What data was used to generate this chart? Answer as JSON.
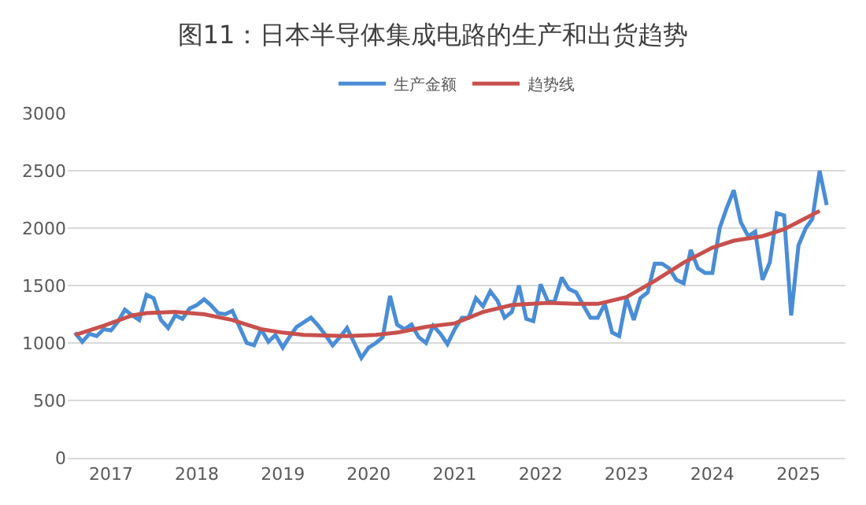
{
  "chart_data": {
    "type": "line",
    "title": "图11：日本半导体集成电路的生产和出货趋势",
    "x": [
      "2016-08",
      "2016-09",
      "2016-10",
      "2016-11",
      "2016-12",
      "2017-01",
      "2017-02",
      "2017-03",
      "2017-04",
      "2017-05",
      "2017-06",
      "2017-07",
      "2017-08",
      "2017-09",
      "2017-10",
      "2017-11",
      "2017-12",
      "2018-01",
      "2018-02",
      "2018-03",
      "2018-04",
      "2018-05",
      "2018-06",
      "2018-07",
      "2018-08",
      "2018-09",
      "2018-10",
      "2018-11",
      "2018-12",
      "2019-01",
      "2019-02",
      "2019-03",
      "2019-04",
      "2019-05",
      "2019-06",
      "2019-07",
      "2019-08",
      "2019-09",
      "2019-10",
      "2019-11",
      "2019-12",
      "2020-01",
      "2020-02",
      "2020-03",
      "2020-04",
      "2020-05",
      "2020-06",
      "2020-07",
      "2020-08",
      "2020-09",
      "2020-10",
      "2020-11",
      "2020-12",
      "2021-01",
      "2021-02",
      "2021-03",
      "2021-04",
      "2021-05",
      "2021-06",
      "2021-07",
      "2021-08",
      "2021-09",
      "2021-10",
      "2021-11",
      "2021-12",
      "2022-01",
      "2022-02",
      "2022-03",
      "2022-04",
      "2022-05",
      "2022-06",
      "2022-07",
      "2022-08",
      "2022-09",
      "2022-10",
      "2022-11",
      "2022-12",
      "2023-01",
      "2023-02",
      "2023-03",
      "2023-04",
      "2023-05",
      "2023-06",
      "2023-07",
      "2023-08",
      "2023-09",
      "2023-10",
      "2023-11",
      "2023-12",
      "2024-01",
      "2024-02",
      "2024-03",
      "2024-04",
      "2024-05",
      "2024-06",
      "2024-07",
      "2024-08",
      "2024-09",
      "2024-10",
      "2024-11",
      "2024-12",
      "2025-01",
      "2025-02",
      "2025-03",
      "2025-04",
      "2025-05"
    ],
    "series": [
      {
        "name": "生产金额",
        "color": "#4a8dd6",
        "values": [
          1090,
          1010,
          1080,
          1060,
          1120,
          1110,
          1190,
          1290,
          1240,
          1200,
          1420,
          1390,
          1200,
          1130,
          1240,
          1210,
          1300,
          1330,
          1380,
          1330,
          1260,
          1250,
          1280,
          1140,
          1000,
          980,
          1120,
          1010,
          1070,
          960,
          1060,
          1140,
          1180,
          1220,
          1150,
          1070,
          980,
          1050,
          1130,
          1000,
          870,
          960,
          1000,
          1050,
          1410,
          1160,
          1120,
          1160,
          1050,
          1000,
          1150,
          1080,
          990,
          1120,
          1220,
          1220,
          1390,
          1320,
          1450,
          1370,
          1220,
          1270,
          1500,
          1210,
          1190,
          1510,
          1360,
          1360,
          1570,
          1470,
          1440,
          1330,
          1220,
          1220,
          1340,
          1090,
          1060,
          1390,
          1200,
          1390,
          1440,
          1690,
          1690,
          1650,
          1550,
          1520,
          1810,
          1650,
          1610,
          1610,
          2000,
          2170,
          2330,
          2050,
          1930,
          1970,
          1550,
          1700,
          2130,
          2110,
          1240,
          1850,
          2000,
          2080,
          2500,
          2200
        ]
      },
      {
        "name": "趋势线",
        "color": "#c8504d",
        "x": [
          "2016-08",
          "2016-12",
          "2017-04",
          "2017-06",
          "2017-10",
          "2018-02",
          "2018-06",
          "2018-10",
          "2019-01",
          "2019-04",
          "2019-10",
          "2020-02",
          "2020-05",
          "2020-09",
          "2021-01",
          "2021-05",
          "2021-09",
          "2022-02",
          "2022-06",
          "2022-09",
          "2023-01",
          "2023-05",
          "2023-09",
          "2024-01",
          "2024-04",
          "2024-08",
          "2024-11",
          "2025-04"
        ],
        "values": [
          1070,
          1150,
          1240,
          1260,
          1270,
          1250,
          1200,
          1120,
          1090,
          1070,
          1060,
          1070,
          1090,
          1140,
          1170,
          1270,
          1330,
          1350,
          1340,
          1340,
          1400,
          1540,
          1700,
          1830,
          1890,
          1930,
          1990,
          2150
        ]
      }
    ],
    "xlim": [
      "2016-07-01",
      "2025-07-20"
    ],
    "xticks": [
      {
        "value": "2017-01",
        "label": "2017"
      },
      {
        "value": "2018-01",
        "label": "2018"
      },
      {
        "value": "2019-01",
        "label": "2019"
      },
      {
        "value": "2020-01",
        "label": "2020"
      },
      {
        "value": "2021-01",
        "label": "2021"
      },
      {
        "value": "2022-01",
        "label": "2022"
      },
      {
        "value": "2023-01",
        "label": "2023"
      },
      {
        "value": "2024-01",
        "label": "2024"
      },
      {
        "value": "2025-01",
        "label": "2025"
      }
    ],
    "ylim": [
      0,
      3000
    ],
    "yticks": [
      0,
      500,
      1000,
      1500,
      2000,
      2500,
      3000
    ],
    "grid": "y",
    "legend": "top",
    "marker": "none",
    "line_style": "solid"
  }
}
